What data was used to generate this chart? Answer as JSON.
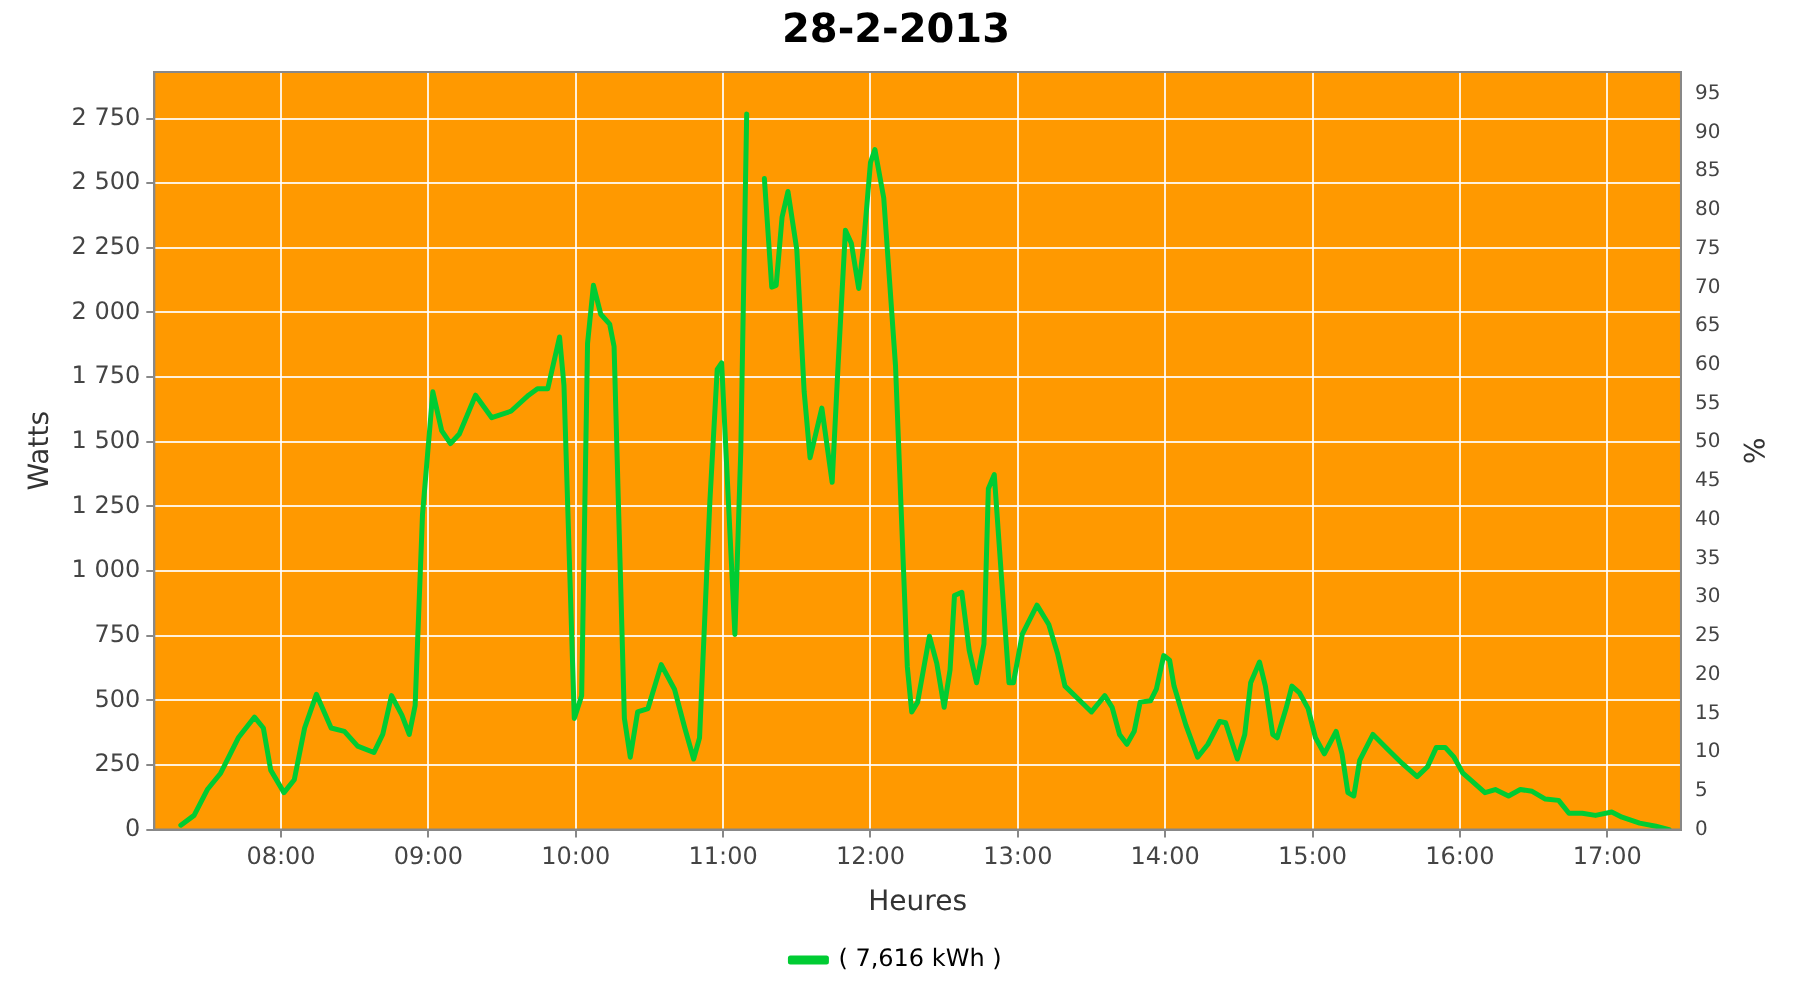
{
  "chart_data": {
    "type": "line",
    "title": "28-2-2013",
    "xlabel": "Heures",
    "ylabel": "Watts",
    "y2label": "%",
    "xlim": [
      7.14,
      17.5
    ],
    "xticks": [
      {
        "value": 8,
        "label": "08:00"
      },
      {
        "value": 9,
        "label": "09:00"
      },
      {
        "value": 10,
        "label": "10:00"
      },
      {
        "value": 11,
        "label": "11:00"
      },
      {
        "value": 12,
        "label": "12:00"
      },
      {
        "value": 13,
        "label": "13:00"
      },
      {
        "value": 14,
        "label": "14:00"
      },
      {
        "value": 15,
        "label": "15:00"
      },
      {
        "value": 16,
        "label": "16:00"
      },
      {
        "value": 17,
        "label": "17:00"
      }
    ],
    "ylim": [
      0,
      2930
    ],
    "yticks": [
      0,
      250,
      500,
      750,
      {
        "value": 1000,
        "label": "1 000"
      },
      {
        "value": 1250,
        "label": "1 250"
      },
      {
        "value": 1500,
        "label": "1 500"
      },
      {
        "value": 1750,
        "label": "1 750"
      },
      {
        "value": 2000,
        "label": "2 000"
      },
      {
        "value": 2250,
        "label": "2 250"
      },
      {
        "value": 2500,
        "label": "2 500"
      },
      {
        "value": 2750,
        "label": "2 750"
      }
    ],
    "y2lim": [
      0,
      97.8
    ],
    "y2ticks": [
      0,
      5,
      10,
      15,
      20,
      25,
      30,
      35,
      40,
      45,
      50,
      55,
      60,
      65,
      70,
      75,
      80,
      85,
      90,
      95
    ],
    "grid": true,
    "legend": "bottom",
    "marker": "none",
    "line_style": "solid",
    "series": [
      {
        "name": "( 7,616 kWh )",
        "color": "#00cc33",
        "x": [
          7.32,
          7.41,
          7.5,
          7.59,
          7.71,
          7.82,
          7.88,
          7.93,
          8.02,
          8.09,
          8.16,
          8.24,
          8.34,
          8.43,
          8.52,
          8.63,
          8.69,
          8.75,
          8.82,
          8.87,
          8.91,
          8.96,
          9.03,
          9.09,
          9.15,
          9.21,
          9.32,
          9.43,
          9.56,
          9.68,
          9.74,
          9.81,
          9.89,
          9.92,
          9.99,
          10.04,
          10.08,
          10.12,
          10.17,
          10.23,
          10.26,
          10.33,
          10.37,
          10.42,
          10.49,
          10.58,
          10.67,
          10.74,
          10.8,
          10.84,
          10.91,
          10.96,
          10.99,
          11.08,
          11.12,
          11.16,
          11.18,
          11.24,
          11.28,
          11.33,
          11.36,
          11.4,
          11.44,
          11.5,
          11.55,
          11.59,
          11.67,
          11.74,
          11.78,
          11.83,
          11.87,
          11.92,
          11.95,
          12.0,
          12.03,
          12.09,
          12.17,
          12.25,
          12.28,
          12.32,
          12.4,
          12.45,
          12.5,
          12.54,
          12.57,
          12.62,
          12.67,
          12.72,
          12.77,
          12.8,
          12.84,
          12.89,
          12.94,
          12.97,
          13.03,
          13.13,
          13.21,
          13.27,
          13.32,
          13.41,
          13.5,
          13.59,
          13.64,
          13.69,
          13.74,
          13.79,
          13.83,
          13.9,
          13.94,
          13.99,
          14.03,
          14.06,
          14.14,
          14.22,
          14.29,
          14.37,
          14.41,
          14.49,
          14.54,
          14.58,
          14.64,
          14.68,
          14.73,
          14.76,
          14.82,
          14.86,
          14.91,
          14.97,
          15.02,
          15.08,
          15.16,
          15.2,
          15.24,
          15.28,
          15.32,
          15.41,
          15.52,
          15.61,
          15.71,
          15.78,
          15.84,
          15.9,
          15.96,
          16.02,
          16.08,
          16.17,
          16.24,
          16.33,
          16.41,
          16.49,
          16.58,
          16.67,
          16.74,
          16.83,
          16.92,
          17.03,
          17.1,
          17.22,
          17.33,
          17.42
        ],
        "values": [
          17,
          55,
          155,
          218,
          355,
          435,
          393,
          230,
          143,
          193,
          393,
          523,
          393,
          380,
          323,
          298,
          368,
          518,
          443,
          368,
          480,
          1218,
          1693,
          1543,
          1493,
          1530,
          1680,
          1593,
          1618,
          1680,
          1705,
          1705,
          1905,
          1718,
          430,
          518,
          1880,
          2105,
          1993,
          1955,
          1868,
          430,
          280,
          455,
          468,
          638,
          543,
          393,
          273,
          355,
          1268,
          1780,
          1805,
          755,
          1468,
          2768,
          null,
          null,
          2518,
          2098,
          2105,
          2368,
          2468,
          2243,
          1693,
          1438,
          1630,
          1343,
          1793,
          2318,
          2268,
          2093,
          2243,
          2580,
          2630,
          2443,
          1793,
          630,
          455,
          493,
          748,
          643,
          473,
          618,
          905,
          918,
          693,
          568,
          718,
          1318,
          1373,
          968,
          568,
          568,
          755,
          868,
          793,
          680,
          555,
          505,
          455,
          518,
          473,
          368,
          330,
          380,
          493,
          498,
          543,
          673,
          655,
          555,
          405,
          280,
          330,
          418,
          413,
          273,
          368,
          568,
          648,
          555,
          368,
          355,
          468,
          555,
          530,
          468,
          355,
          293,
          380,
          293,
          143,
          130,
          268,
          368,
          305,
          255,
          205,
          243,
          318,
          318,
          280,
          218,
          188,
          143,
          155,
          130,
          155,
          148,
          118,
          113,
          63,
          63,
          55,
          68,
          48,
          25,
          13,
          0
        ]
      }
    ]
  }
}
